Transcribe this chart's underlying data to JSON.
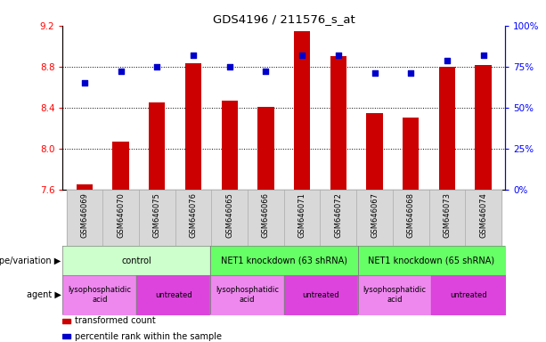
{
  "title": "GDS4196 / 211576_s_at",
  "samples": [
    "GSM646069",
    "GSM646070",
    "GSM646075",
    "GSM646076",
    "GSM646065",
    "GSM646066",
    "GSM646071",
    "GSM646072",
    "GSM646067",
    "GSM646068",
    "GSM646073",
    "GSM646074"
  ],
  "bar_values": [
    7.65,
    8.07,
    8.45,
    8.83,
    8.47,
    8.41,
    9.15,
    8.9,
    8.35,
    8.3,
    8.8,
    8.82
  ],
  "dot_values": [
    65,
    72,
    75,
    82,
    75,
    72,
    82,
    82,
    71,
    71,
    79,
    82
  ],
  "bar_bottom": 7.6,
  "ylim_left": [
    7.6,
    9.2
  ],
  "ylim_right": [
    0,
    100
  ],
  "yticks_left": [
    7.6,
    8.0,
    8.4,
    8.8,
    9.2
  ],
  "yticks_right": [
    0,
    25,
    50,
    75,
    100
  ],
  "yticklabels_right": [
    "0%",
    "25%",
    "50%",
    "75%",
    "100%"
  ],
  "bar_color": "#cc0000",
  "dot_color": "#0000cc",
  "genotype_groups": [
    {
      "label": "control",
      "start": 0,
      "end": 4,
      "color": "#ccffcc"
    },
    {
      "label": "NET1 knockdown (63 shRNA)",
      "start": 4,
      "end": 8,
      "color": "#66ff66"
    },
    {
      "label": "NET1 knockdown (65 shRNA)",
      "start": 8,
      "end": 12,
      "color": "#66ff66"
    }
  ],
  "agent_groups": [
    {
      "label": "lysophosphatidic\nacid",
      "start": 0,
      "end": 2,
      "color": "#ee88ee"
    },
    {
      "label": "untreated",
      "start": 2,
      "end": 4,
      "color": "#dd44dd"
    },
    {
      "label": "lysophosphatidic\nacid",
      "start": 4,
      "end": 6,
      "color": "#ee88ee"
    },
    {
      "label": "untreated",
      "start": 6,
      "end": 8,
      "color": "#dd44dd"
    },
    {
      "label": "lysophosphatidic\nacid",
      "start": 8,
      "end": 10,
      "color": "#ee88ee"
    },
    {
      "label": "untreated",
      "start": 10,
      "end": 12,
      "color": "#dd44dd"
    }
  ],
  "legend_items": [
    {
      "label": "transformed count",
      "color": "#cc0000"
    },
    {
      "label": "percentile rank within the sample",
      "color": "#0000cc"
    }
  ],
  "genotype_label": "genotype/variation",
  "agent_label": "agent",
  "sample_bg_color": "#d8d8d8",
  "sample_border_color": "#aaaaaa"
}
